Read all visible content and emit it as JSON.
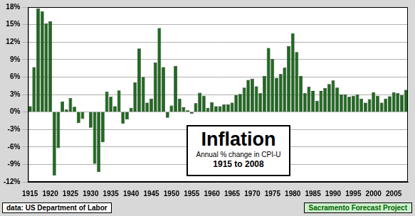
{
  "chart_data": {
    "type": "bar",
    "title": "Inflation",
    "subtitle": "Annual % change in CPI-U",
    "annotations": [
      "1915 to 2008",
      "data: US Department of Labor",
      "Sacramento Forecast Project"
    ],
    "x": [
      1915,
      1916,
      1917,
      1918,
      1919,
      1920,
      1921,
      1922,
      1923,
      1924,
      1925,
      1926,
      1927,
      1928,
      1929,
      1930,
      1931,
      1932,
      1933,
      1934,
      1935,
      1936,
      1937,
      1938,
      1939,
      1940,
      1941,
      1942,
      1943,
      1944,
      1945,
      1946,
      1947,
      1948,
      1949,
      1950,
      1951,
      1952,
      1953,
      1954,
      1955,
      1956,
      1957,
      1958,
      1959,
      1960,
      1961,
      1962,
      1963,
      1964,
      1965,
      1966,
      1967,
      1968,
      1969,
      1970,
      1971,
      1972,
      1973,
      1974,
      1975,
      1976,
      1977,
      1978,
      1979,
      1980,
      1981,
      1982,
      1983,
      1984,
      1985,
      1986,
      1987,
      1988,
      1989,
      1990,
      1991,
      1992,
      1993,
      1994,
      1995,
      1996,
      1997,
      1998,
      1999,
      2000,
      2001,
      2002,
      2003,
      2004,
      2005,
      2006,
      2007,
      2008
    ],
    "values": [
      1.0,
      7.7,
      17.8,
      17.3,
      15.2,
      15.6,
      -10.9,
      -6.2,
      1.8,
      0.4,
      2.4,
      0.9,
      -1.9,
      -1.2,
      0.0,
      -2.7,
      -8.9,
      -10.3,
      -5.2,
      3.5,
      2.6,
      1.0,
      3.7,
      -2.0,
      -1.3,
      0.7,
      5.1,
      10.9,
      6.0,
      1.6,
      2.3,
      8.5,
      14.4,
      7.7,
      -1.0,
      1.1,
      7.9,
      2.3,
      0.8,
      0.3,
      -0.3,
      1.5,
      3.3,
      2.8,
      0.7,
      1.7,
      1.0,
      1.0,
      1.3,
      1.3,
      1.6,
      2.9,
      3.1,
      4.2,
      5.5,
      5.7,
      4.4,
      3.2,
      6.2,
      11.0,
      9.1,
      5.8,
      6.5,
      7.6,
      11.3,
      13.5,
      10.3,
      6.2,
      3.2,
      4.3,
      3.6,
      1.9,
      3.6,
      4.1,
      4.8,
      5.4,
      4.2,
      3.0,
      3.0,
      2.6,
      2.8,
      3.0,
      2.3,
      1.6,
      2.2,
      3.4,
      2.8,
      1.6,
      2.3,
      2.7,
      3.4,
      3.2,
      2.9,
      3.8
    ],
    "color": "#1e6b1e",
    "xlim": [
      1914.5,
      2008.5
    ],
    "xticks": [
      1915,
      1920,
      1925,
      1930,
      1935,
      1940,
      1945,
      1950,
      1955,
      1960,
      1965,
      1970,
      1975,
      1980,
      1985,
      1990,
      1995,
      2000,
      2005
    ],
    "ylim": [
      -12,
      18
    ],
    "yticks": [
      {
        "value": -12,
        "label": "-12%"
      },
      {
        "value": -9,
        "label": "-9%"
      },
      {
        "value": -6,
        "label": "-6%"
      },
      {
        "value": -3,
        "label": "-3%"
      },
      {
        "value": 0,
        "label": "0%"
      },
      {
        "value": 3,
        "label": "3%"
      },
      {
        "value": 6,
        "label": "6%"
      },
      {
        "value": 9,
        "label": "9%"
      },
      {
        "value": 12,
        "label": "12%"
      },
      {
        "value": 15,
        "label": "15%"
      },
      {
        "value": 18,
        "label": "18%"
      }
    ],
    "grid": true
  }
}
